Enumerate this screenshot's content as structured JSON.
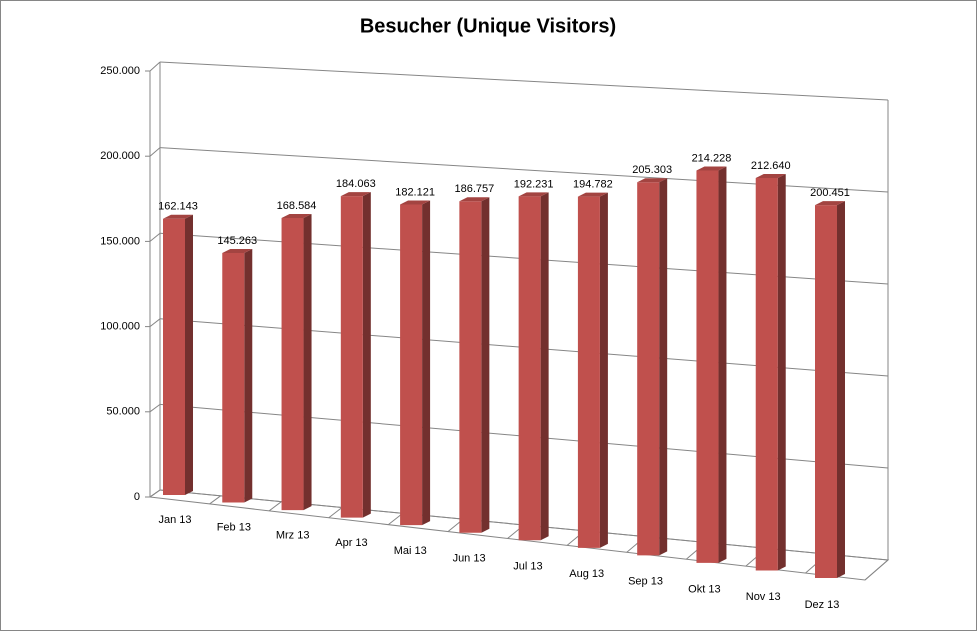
{
  "chart_data": {
    "type": "bar3d",
    "title": "Besucher (Unique Visitors)",
    "categories": [
      "Jan 13",
      "Feb 13",
      "Mrz 13",
      "Apr 13",
      "Mai 13",
      "Jun 13",
      "Jul 13",
      "Aug 13",
      "Sep 13",
      "Okt 13",
      "Nov 13",
      "Dez 13"
    ],
    "values": [
      162143,
      145263,
      168584,
      184063,
      182121,
      186757,
      192231,
      194782,
      205303,
      214228,
      212640,
      200451
    ],
    "value_labels": [
      "162.143",
      "145.263",
      "168.584",
      "184.063",
      "182.121",
      "186.757",
      "192.231",
      "194.782",
      "205.303",
      "214.228",
      "212.640",
      "200.451"
    ],
    "color": "#c0504d",
    "ylim": [
      0,
      250000
    ],
    "yticks": [
      0,
      {
        "value": 50000,
        "label": "50.000"
      },
      {
        "value": 100000,
        "label": "100.000"
      },
      {
        "value": 150000,
        "label": "150.000"
      },
      {
        "value": 200000,
        "label": "200.000"
      },
      {
        "value": 250000,
        "label": "250.000"
      }
    ],
    "grid": true
  }
}
